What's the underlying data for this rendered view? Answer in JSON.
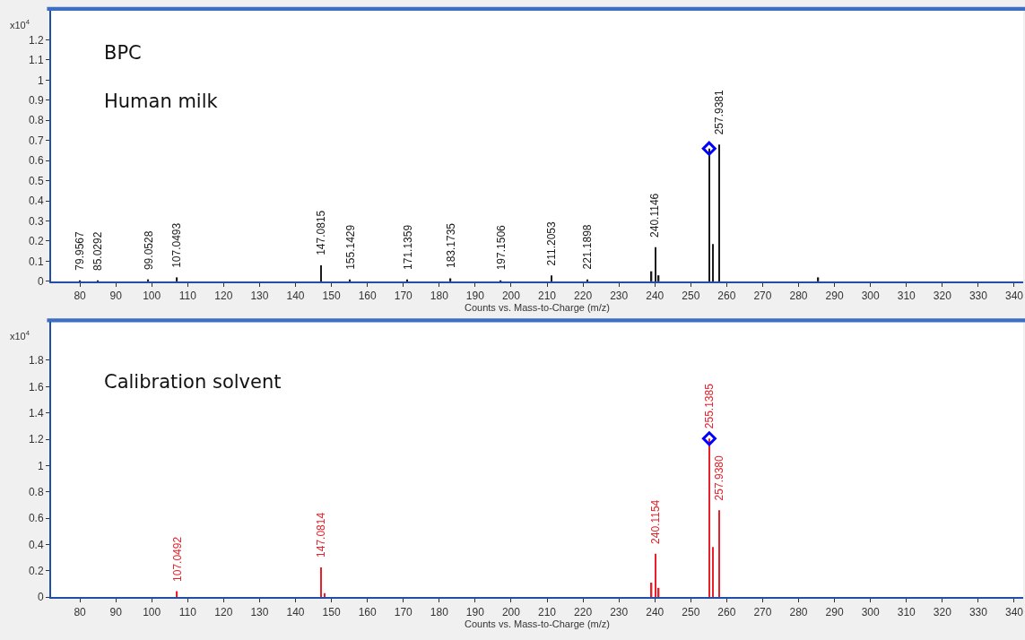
{
  "chart_data": [
    {
      "type": "bar",
      "ylabel": "x10$^{4}$",
      "xlabel": "Counts vs. Mass-to-Charge (m/z)",
      "xlim": [
        72,
        342.5
      ],
      "ylim": [
        0,
        1.345
      ],
      "xticks": [
        80,
        90,
        100,
        110,
        120,
        130,
        140,
        150,
        160,
        170,
        180,
        190,
        200,
        210,
        220,
        230,
        240,
        250,
        260,
        270,
        280,
        290,
        300,
        310,
        320,
        330,
        340
      ],
      "yticks": [
        0,
        0.1,
        0.2,
        0.3,
        0.4,
        0.5,
        0.6,
        0.7,
        0.8,
        0.9,
        1,
        1.1,
        1.2
      ],
      "series": [
        {
          "color": "#1a1a1a",
          "x": [
            79.9567,
            85.0292,
            99.0528,
            107.0493,
            147.0815,
            155.1429,
            171.1359,
            183.1735,
            197.1506,
            211.2053,
            221.1898,
            239.1,
            240.1146,
            241.1,
            255.1,
            256.1,
            257.9381,
            285.5
          ],
          "values": [
            0.005,
            0.005,
            0.01,
            0.02,
            0.08,
            0.01,
            0.01,
            0.015,
            0.005,
            0.03,
            0.01,
            0.05,
            0.17,
            0.03,
            0.66,
            0.185,
            0.68,
            0.02
          ]
        },
        {
          "type": "scatter",
          "marker": "diamond",
          "color": "#0000ff",
          "x": [
            255.1
          ],
          "values": [
            0.66
          ]
        }
      ],
      "annotations": [
        "BPC",
        "Human milk",
        {
          "text": "79.9567",
          "x": 79.9567,
          "y": 0.005
        },
        {
          "text": "85.0292",
          "x": 85.0292,
          "y": 0.005
        },
        {
          "text": "99.0528",
          "x": 99.0528,
          "y": 0.01
        },
        {
          "text": "107.0493",
          "x": 107.0493,
          "y": 0.02
        },
        {
          "text": "147.0815",
          "x": 147.0815,
          "y": 0.08
        },
        {
          "text": "155.1429",
          "x": 155.1429,
          "y": 0.01
        },
        {
          "text": "171.1359",
          "x": 171.1359,
          "y": 0.01
        },
        {
          "text": "183.1735",
          "x": 183.1735,
          "y": 0.015
        },
        {
          "text": "197.1506",
          "x": 197.1506,
          "y": 0.005
        },
        {
          "text": "211.2053",
          "x": 211.2053,
          "y": 0.03
        },
        {
          "text": "221.1898",
          "x": 221.1898,
          "y": 0.01
        },
        {
          "text": "240.1146",
          "x": 240.1146,
          "y": 0.17
        },
        {
          "text": "257.9381",
          "x": 257.9381,
          "y": 0.68
        }
      ]
    },
    {
      "type": "bar",
      "ylabel": "x10$^{4}$",
      "xlabel": "Counts vs. Mass-to-Charge (m/z)",
      "xlim": [
        72,
        342.5
      ],
      "ylim": [
        0,
        2.09
      ],
      "xticks": [
        80,
        90,
        100,
        110,
        120,
        130,
        140,
        150,
        160,
        170,
        180,
        190,
        200,
        210,
        220,
        230,
        240,
        250,
        260,
        270,
        280,
        290,
        300,
        310,
        320,
        330,
        340
      ],
      "yticks": [
        0,
        0.2,
        0.4,
        0.6,
        0.8,
        1,
        1.2,
        1.4,
        1.6,
        1.8
      ],
      "series": [
        {
          "color": "#e8202a",
          "x": [
            107.0492,
            147.0814,
            148.1,
            239.1,
            240.1154,
            241.1,
            255.1385,
            256.1,
            257.938
          ],
          "values": [
            0.045,
            0.225,
            0.03,
            0.11,
            0.33,
            0.07,
            1.205,
            0.38,
            0.66
          ]
        },
        {
          "type": "scatter",
          "marker": "diamond",
          "color": "#0000ff",
          "x": [
            255.1385
          ],
          "values": [
            1.205
          ]
        }
      ],
      "annotations": [
        "Calibration solvent",
        {
          "text": "107.0492",
          "x": 107.0492,
          "y": 0.045
        },
        {
          "text": "147.0814",
          "x": 147.0814,
          "y": 0.225
        },
        {
          "text": "240.1154",
          "x": 240.1154,
          "y": 0.33
        },
        {
          "text": "255.1385",
          "x": 255.1385,
          "y": 1.205
        },
        {
          "text": "257.9380",
          "x": 257.938,
          "y": 0.66
        }
      ]
    }
  ]
}
